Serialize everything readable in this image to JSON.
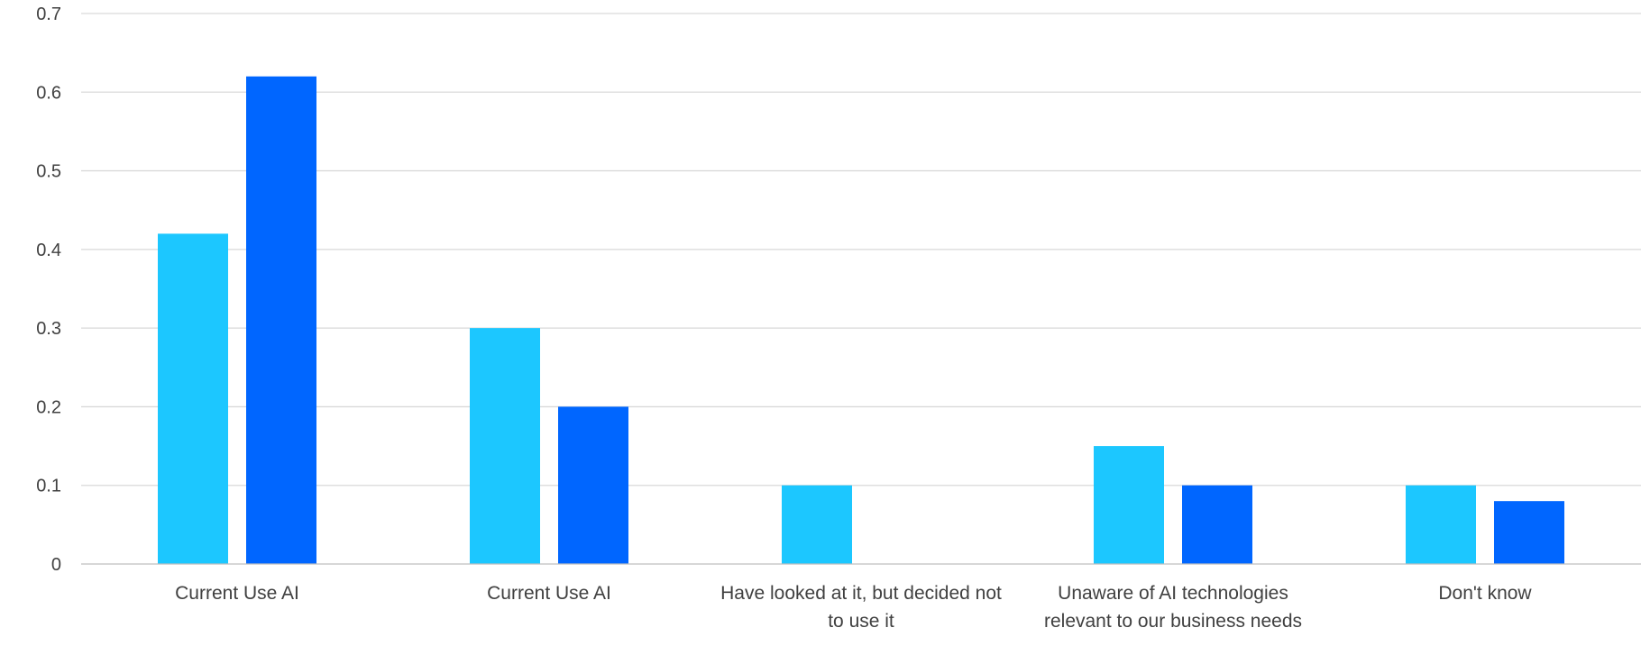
{
  "chart_data": {
    "type": "bar",
    "title": "",
    "xlabel": "",
    "ylabel": "",
    "ylim": [
      0,
      0.7
    ],
    "yticks": [
      "0",
      "0.1",
      "0.2",
      "0.3",
      "0.4",
      "0.5",
      "0.6",
      "0.7"
    ],
    "grid": true,
    "legend": "none",
    "categories": [
      [
        "Current Use AI"
      ],
      [
        "Current Use AI"
      ],
      [
        "Have looked at it, but decided not",
        "to use it"
      ],
      [
        "Unaware of AI technologies",
        "relevant to our business needs"
      ],
      [
        "Don't know"
      ]
    ],
    "series": [
      {
        "color": "#1CC7FF",
        "values": [
          0.42,
          0.3,
          0.1,
          0.15,
          0.1
        ]
      },
      {
        "color": "#0066FF",
        "values": [
          0.62,
          0.2,
          0.0,
          0.1,
          0.08
        ]
      }
    ]
  }
}
